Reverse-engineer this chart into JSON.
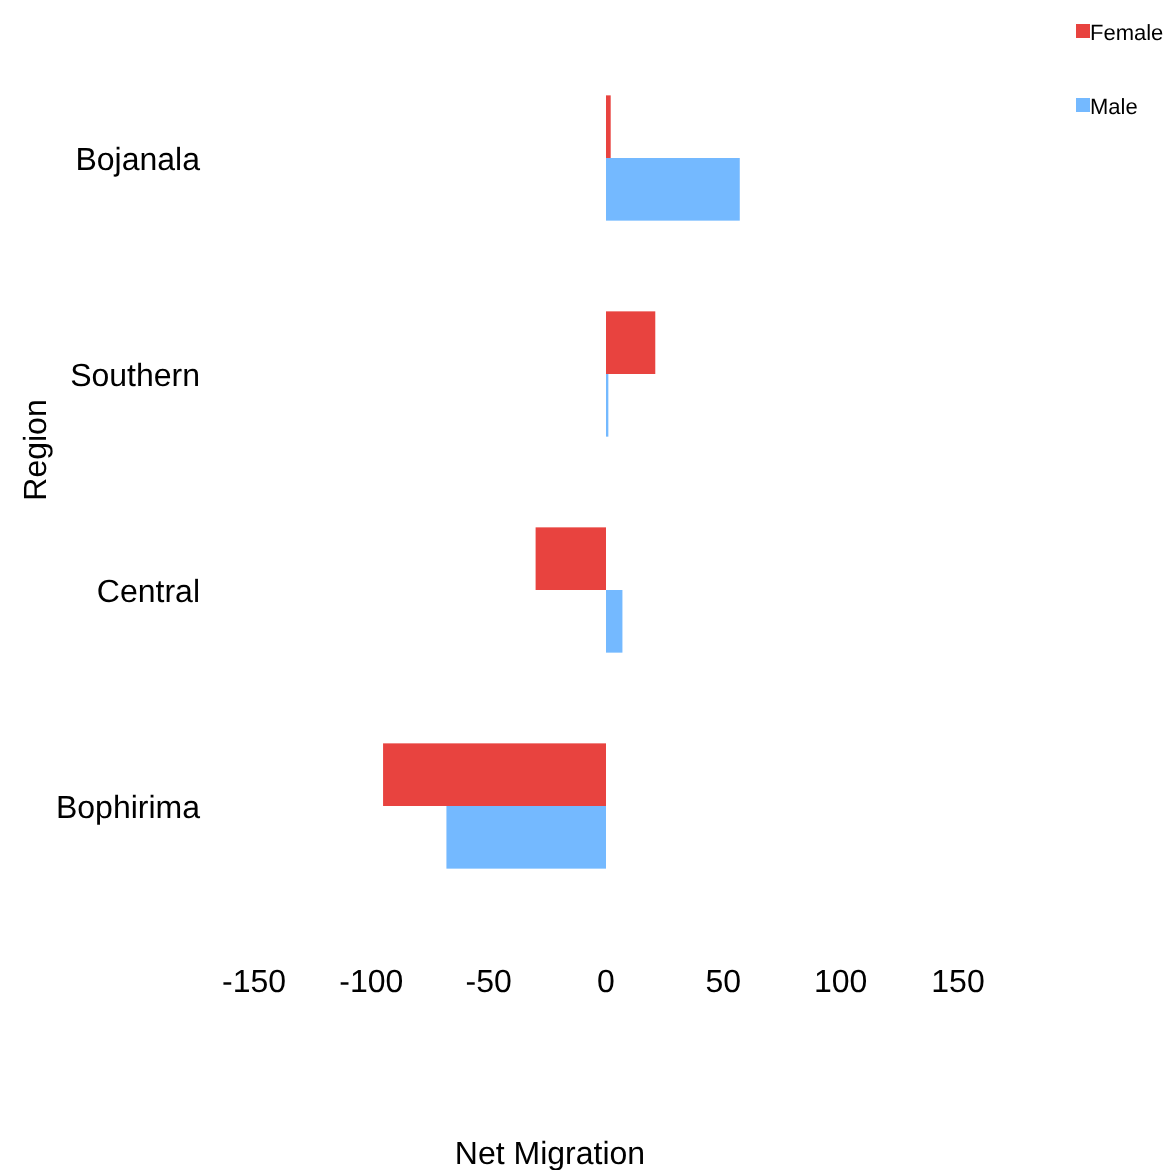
{
  "chart_data": {
    "type": "bar",
    "orientation": "horizontal",
    "xlabel": "Net Migration",
    "ylabel": "Region",
    "categories": [
      "Bojanala",
      "Southern",
      "Central",
      "Bophirima"
    ],
    "series": [
      {
        "name": "Female",
        "color": "#e8433f",
        "values": [
          2,
          21,
          -30,
          -95
        ]
      },
      {
        "name": "Male",
        "color": "#74b9ff",
        "values": [
          57,
          1,
          7,
          -68
        ]
      }
    ],
    "xlim": [
      -150,
      150
    ],
    "xticks": [
      -150,
      -100,
      -50,
      0,
      50,
      100,
      150
    ],
    "grid": false,
    "legend": "top right"
  }
}
